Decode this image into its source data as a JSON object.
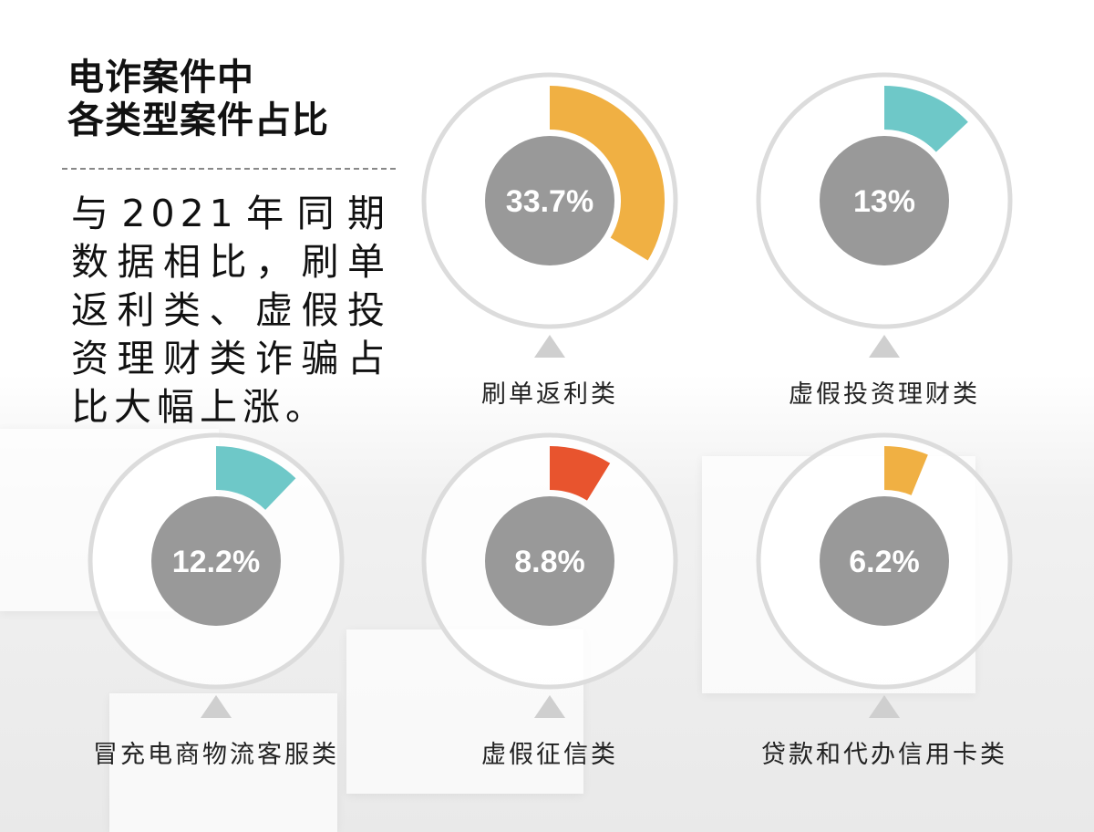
{
  "title_lines": [
    "电诈案件中",
    "各类型案件占比"
  ],
  "description": "与2021年同期数据相比，刷单返利类、虚假投资理财类诈骗占比大幅上涨。",
  "chart_data": {
    "type": "pie",
    "title": "电诈案件中各类型案件占比",
    "unit": "%",
    "items": [
      {
        "category": "刷单返利类",
        "value": 33.7,
        "label": "33.7%",
        "color": "#F0B043"
      },
      {
        "category": "虚假投资理财类",
        "value": 13,
        "label": "13%",
        "color": "#6EC8C8"
      },
      {
        "category": "冒充电商物流客服类",
        "value": 12.2,
        "label": "12.2%",
        "color": "#6EC8C8"
      },
      {
        "category": "虚假征信类",
        "value": 8.8,
        "label": "8.8%",
        "color": "#E8542E"
      },
      {
        "category": "贷款和代办信用卡类",
        "value": 6.2,
        "label": "6.2%",
        "color": "#F0B043"
      }
    ]
  }
}
